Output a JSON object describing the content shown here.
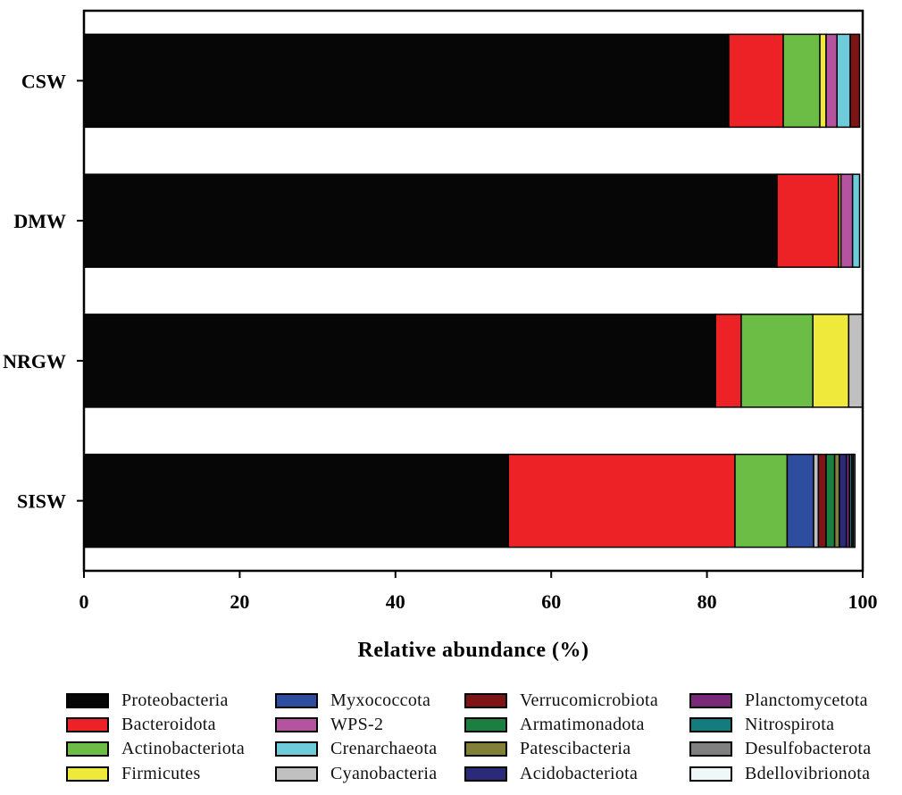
{
  "chart_data": {
    "type": "bar",
    "orientation": "horizontal",
    "stacked": true,
    "title": "",
    "xlabel": "Relative abundance (%)",
    "ylabel": "",
    "xlim": [
      0,
      100
    ],
    "xticks": [
      "0",
      "20",
      "40",
      "60",
      "80",
      "100"
    ],
    "xtick_values": [
      0,
      20,
      40,
      60,
      80,
      100
    ],
    "categories": [
      "CSW",
      "DMW",
      "NRGW",
      "SISW"
    ],
    "legend_position": "bottom",
    "grid": false,
    "series": [
      {
        "name": "Proteobacteria",
        "color": "#060606",
        "values": [
          82.8,
          89.0,
          81.1,
          54.5
        ]
      },
      {
        "name": "Bacteroidota",
        "color": "#ec2227",
        "values": [
          7.0,
          7.9,
          3.3,
          29.1
        ]
      },
      {
        "name": "Actinobacteriota",
        "color": "#6cbd45",
        "values": [
          4.7,
          0,
          9.2,
          6.7
        ]
      },
      {
        "name": "Firmicutes",
        "color": "#efe93b",
        "values": [
          0.8,
          0.3,
          4.6,
          0
        ]
      },
      {
        "name": "Myxococcota",
        "color": "#2f4d9e",
        "values": [
          0,
          0,
          0,
          3.4
        ]
      },
      {
        "name": "WPS-2",
        "color": "#b453a0",
        "values": [
          1.4,
          1.5,
          0,
          0
        ]
      },
      {
        "name": "Crenarchaeota",
        "color": "#6ecbd9",
        "values": [
          1.7,
          0.9,
          0,
          0
        ]
      },
      {
        "name": "Cyanobacteria",
        "color": "#c0c0c0",
        "values": [
          0,
          0,
          1.8,
          0.6
        ]
      },
      {
        "name": "Verrucomicrobiota",
        "color": "#7d1416",
        "values": [
          1.2,
          0,
          0,
          1.0
        ]
      },
      {
        "name": "Armatimonadota",
        "color": "#1b7f41",
        "values": [
          0,
          0,
          0,
          1.1
        ]
      },
      {
        "name": "Patescibacteria",
        "color": "#808037",
        "values": [
          0,
          0,
          0,
          0.6
        ]
      },
      {
        "name": "Acidobacteriota",
        "color": "#2b2a78",
        "values": [
          0,
          0,
          0,
          0.9
        ]
      },
      {
        "name": "Planctomycetota",
        "color": "#782a78",
        "values": [
          0,
          0,
          0,
          0.4
        ]
      },
      {
        "name": "Nitrospirota",
        "color": "#157c7d",
        "values": [
          0,
          0,
          0,
          0.3
        ]
      },
      {
        "name": "Desulfobacterota",
        "color": "#808080",
        "values": [
          0,
          0,
          0,
          0.2
        ]
      },
      {
        "name": "Bdellovibrionota",
        "color": "#eef8f8",
        "values": [
          0,
          0,
          0,
          0.2
        ]
      }
    ]
  }
}
